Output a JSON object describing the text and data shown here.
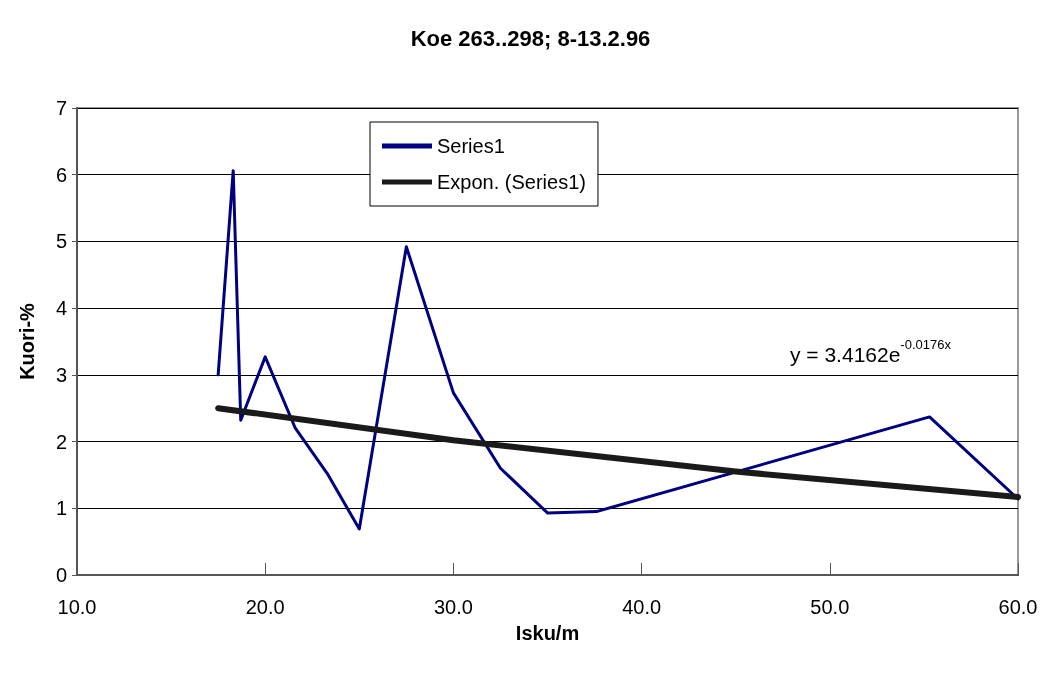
{
  "chart_data": {
    "type": "line",
    "title": "Koe 263..298; 8-13.2.96",
    "xlabel": "Isku/m",
    "ylabel": "Kuori-%",
    "series": [
      {
        "name": "Series1",
        "color": "#000080",
        "x": [
          17.5,
          18.3,
          18.7,
          20.0,
          21.6,
          23.3,
          25.0,
          27.5,
          30.0,
          32.5,
          35.0,
          37.6,
          55.3,
          60.0
        ],
        "values": [
          3.0,
          6.06,
          2.32,
          3.27,
          2.2,
          1.52,
          0.69,
          4.92,
          2.73,
          1.6,
          0.93,
          0.95,
          2.37,
          1.14
        ]
      },
      {
        "name": "Expon. (Series1)",
        "color": "#1a1a1a",
        "x": [
          17.5,
          30,
          45,
          60
        ],
        "values": [
          2.5,
          2.02,
          1.55,
          1.17
        ]
      }
    ],
    "xlim": [
      10,
      60
    ],
    "xticks": [
      {
        "value": 10,
        "label": "10.0"
      },
      {
        "value": 20,
        "label": "20.0"
      },
      {
        "value": 30,
        "label": "30.0"
      },
      {
        "value": 40,
        "label": "40.0"
      },
      {
        "value": 50,
        "label": "50.0"
      },
      {
        "value": 60,
        "label": "60.0"
      }
    ],
    "ylim": [
      0,
      7
    ],
    "yticks": [
      0,
      1,
      2,
      3,
      4,
      5,
      6,
      7
    ],
    "annotations": [
      "y = 3.4162e$^{-0.0176x}$"
    ],
    "grid": "y",
    "legend": "top",
    "marker": "none",
    "line_style": "solid"
  }
}
